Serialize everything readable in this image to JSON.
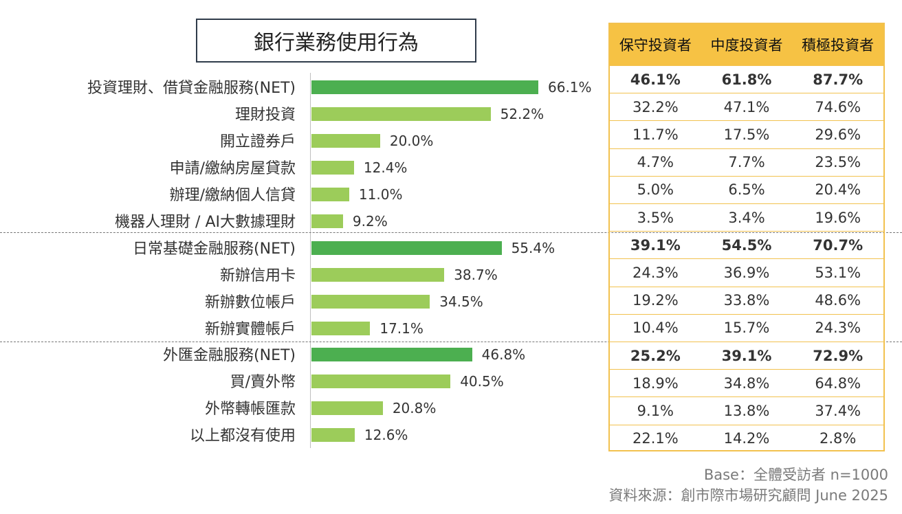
{
  "title": "銀行業務使用行為",
  "colors": {
    "net_bar": "#4caf50",
    "sub_bar": "#9ccc5a",
    "table_header": "#f6c244",
    "table_border": "#f2c14e"
  },
  "table": {
    "headers": [
      "保守投資者",
      "中度投資者",
      "積極投資者"
    ],
    "rows": [
      [
        "46.1%",
        "61.8%",
        "87.7%"
      ],
      [
        "32.2%",
        "47.1%",
        "74.6%"
      ],
      [
        "11.7%",
        "17.5%",
        "29.6%"
      ],
      [
        "4.7%",
        "7.7%",
        "23.5%"
      ],
      [
        "5.0%",
        "6.5%",
        "20.4%"
      ],
      [
        "3.5%",
        "3.4%",
        "19.6%"
      ],
      [
        "39.1%",
        "54.5%",
        "70.7%"
      ],
      [
        "24.3%",
        "36.9%",
        "53.1%"
      ],
      [
        "19.2%",
        "33.8%",
        "48.6%"
      ],
      [
        "10.4%",
        "15.7%",
        "24.3%"
      ],
      [
        "25.2%",
        "39.1%",
        "72.9%"
      ],
      [
        "18.9%",
        "34.8%",
        "64.8%"
      ],
      [
        "9.1%",
        "13.8%",
        "37.4%"
      ],
      [
        "22.1%",
        "14.2%",
        "2.8%"
      ]
    ]
  },
  "chart_data": {
    "type": "bar",
    "orientation": "horizontal",
    "title": "銀行業務使用行為",
    "categories": [
      "投資理財、借貸金融服務(NET)",
      "理財投資",
      "開立證券戶",
      "申請/繳納房屋貸款",
      "辦理/繳納個人信貸",
      "機器人理財 / AI大數據理財",
      "日常基礎金融服務(NET)",
      "新辦信用卡",
      "新辦數位帳戶",
      "新辦實體帳戶",
      "外匯金融服務(NET)",
      "買/賣外幣",
      "外幣轉帳匯款",
      "以上都沒有使用"
    ],
    "values": [
      66.1,
      52.2,
      20.0,
      12.4,
      11.0,
      9.2,
      55.4,
      38.7,
      34.5,
      17.1,
      46.8,
      40.5,
      20.8,
      12.6
    ],
    "value_labels": [
      "66.1%",
      "52.2%",
      "20.0%",
      "12.4%",
      "11.0%",
      "9.2%",
      "55.4%",
      "38.7%",
      "34.5%",
      "17.1%",
      "46.8%",
      "40.5%",
      "20.8%",
      "12.6%"
    ],
    "net_flags": [
      true,
      false,
      false,
      false,
      false,
      false,
      true,
      false,
      false,
      false,
      true,
      false,
      false,
      false
    ],
    "xlim": [
      0,
      100
    ],
    "grid": false,
    "legend": "none"
  },
  "footer": {
    "base": "Base：全體受訪者 n=1000",
    "source": "資料來源：創市際市場研究顧問 June 2025"
  }
}
